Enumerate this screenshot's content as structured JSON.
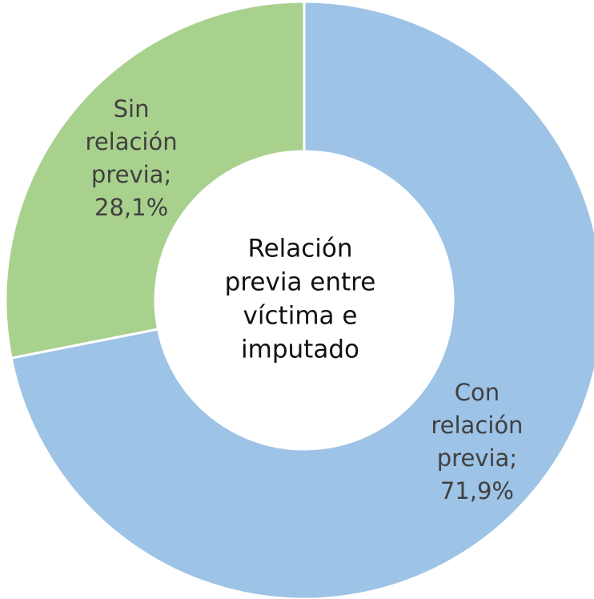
{
  "chart_data": {
    "type": "donut",
    "categories": [
      "Con relación previa",
      "Sin relación previa"
    ],
    "values": [
      71.9,
      28.1
    ],
    "value_labels": [
      "71,9%",
      "28,1%"
    ],
    "label_separator": ";",
    "colors": [
      "#9dc3e6",
      "#a9d18e"
    ],
    "center_text": [
      "Relación",
      "previa entre",
      "víctima e",
      "imputado"
    ]
  }
}
